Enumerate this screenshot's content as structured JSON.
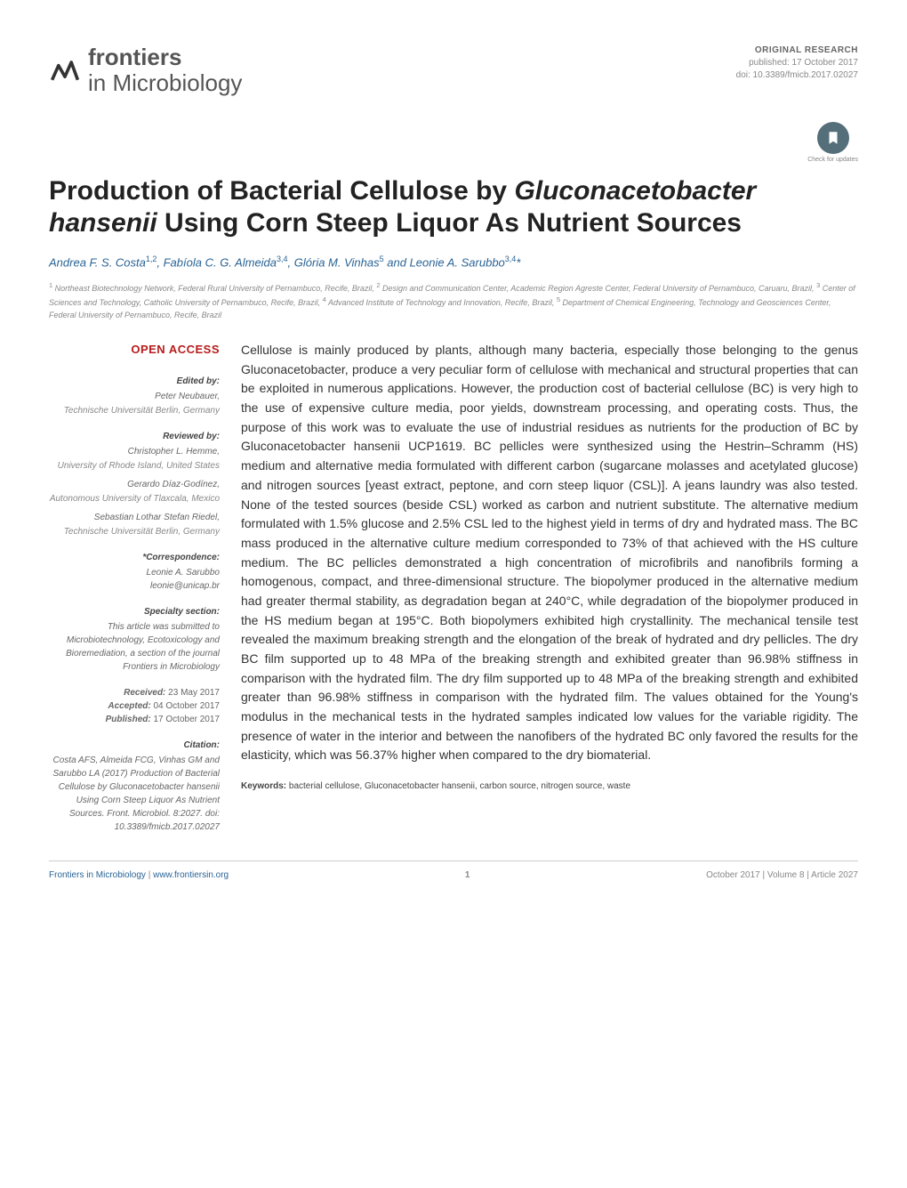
{
  "header": {
    "journal_name_light": "frontiers",
    "journal_name_sub": "in Microbiology",
    "article_type": "ORIGINAL RESEARCH",
    "published": "published: 17 October 2017",
    "doi": "doi: 10.3389/fmicb.2017.02027",
    "check_updates": "Check for updates"
  },
  "title_parts": {
    "line1": "Production of Bacterial Cellulose by ",
    "italic": "Gluconacetobacter hansenii",
    "line2": " Using Corn Steep Liquor As Nutrient Sources"
  },
  "authors_html": "Andrea F. S. Costa<sup>1,2</sup>, Fabíola C. G. Almeida<sup>3,4</sup>, Glória M. Vinhas<sup>5</sup> and Leonie A. Sarubbo<sup>3,4</sup>*",
  "affiliations": "<sup>1</sup> Northeast Biotechnology Network, Federal Rural University of Pernambuco, Recife, Brazil, <sup>2</sup> Design and Communication Center, Academic Region Agreste Center, Federal University of Pernambuco, Caruaru, Brazil, <sup>3</sup> Center of Sciences and Technology, Catholic University of Pernambuco, Recife, Brazil, <sup>4</sup> Advanced Institute of Technology and Innovation, Recife, Brazil, <sup>5</sup> Department of Chemical Engineering, Technology and Geosciences Center, Federal University of Pernambuco, Recife, Brazil",
  "sidebar": {
    "open_access": "OPEN ACCESS",
    "edited_label": "Edited by:",
    "editor_name": "Peter Neubauer,",
    "editor_inst": "Technische Universität Berlin, Germany",
    "reviewed_label": "Reviewed by:",
    "reviewers": [
      {
        "name": "Christopher L. Hemme,",
        "inst": "University of Rhode Island, United States"
      },
      {
        "name": "Gerardo Díaz-Godínez,",
        "inst": "Autonomous University of Tlaxcala, Mexico"
      },
      {
        "name": "Sebastian Lothar Stefan Riedel,",
        "inst": "Technische Universität Berlin, Germany"
      }
    ],
    "correspondence_label": "*Correspondence:",
    "corr_name": "Leonie A. Sarubbo",
    "corr_email": "leonie@unicap.br",
    "specialty_label": "Specialty section:",
    "specialty_text": "This article was submitted to Microbiotechnology, Ecotoxicology and Bioremediation, a section of the journal Frontiers in Microbiology",
    "received_label": "Received:",
    "received_date": " 23 May 2017",
    "accepted_label": "Accepted:",
    "accepted_date": " 04 October 2017",
    "published_label": "Published:",
    "published_date": " 17 October 2017",
    "citation_label": "Citation:",
    "citation_text": "Costa AFS, Almeida FCG, Vinhas GM and Sarubbo LA (2017) Production of Bacterial Cellulose by Gluconacetobacter hansenii Using Corn Steep Liquor As Nutrient Sources. Front. Microbiol. 8:2027. doi: 10.3389/fmicb.2017.02027"
  },
  "abstract": "Cellulose is mainly produced by plants, although many bacteria, especially those belonging to the genus Gluconacetobacter, produce a very peculiar form of cellulose with mechanical and structural properties that can be exploited in numerous applications. However, the production cost of bacterial cellulose (BC) is very high to the use of expensive culture media, poor yields, downstream processing, and operating costs. Thus, the purpose of this work was to evaluate the use of industrial residues as nutrients for the production of BC by Gluconacetobacter hansenii UCP1619. BC pellicles were synthesized using the Hestrin–Schramm (HS) medium and alternative media formulated with different carbon (sugarcane molasses and acetylated glucose) and nitrogen sources [yeast extract, peptone, and corn steep liquor (CSL)]. A jeans laundry was also tested. None of the tested sources (beside CSL) worked as carbon and nutrient substitute. The alternative medium formulated with 1.5% glucose and 2.5% CSL led to the highest yield in terms of dry and hydrated mass. The BC mass produced in the alternative culture medium corresponded to 73% of that achieved with the HS culture medium. The BC pellicles demonstrated a high concentration of microfibrils and nanofibrils forming a homogenous, compact, and three-dimensional structure. The biopolymer produced in the alternative medium had greater thermal stability, as degradation began at 240°C, while degradation of the biopolymer produced in the HS medium began at 195°C. Both biopolymers exhibited high crystallinity. The mechanical tensile test revealed the maximum breaking strength and the elongation of the break of hydrated and dry pellicles. The dry BC film supported up to 48 MPa of the breaking strength and exhibited greater than 96.98% stiffness in comparison with the hydrated film. The dry film supported up to 48 MPa of the breaking strength and exhibited greater than 96.98% stiffness in comparison with the hydrated film. The values obtained for the Young's modulus in the mechanical tests in the hydrated samples indicated low values for the variable rigidity. The presence of water in the interior and between the nanofibers of the hydrated BC only favored the results for the elasticity, which was 56.37% higher when compared to the dry biomaterial.",
  "keywords_label": "Keywords:",
  "keywords": " bacterial cellulose, Gluconacetobacter hansenii, carbon source, nitrogen source, waste",
  "footer": {
    "left_link": "Frontiers in Microbiology",
    "left_sep": " | ",
    "left_url": "www.frontiersin.org",
    "page_num": "1",
    "right": "October 2017 | Volume 8 | Article 2027"
  }
}
